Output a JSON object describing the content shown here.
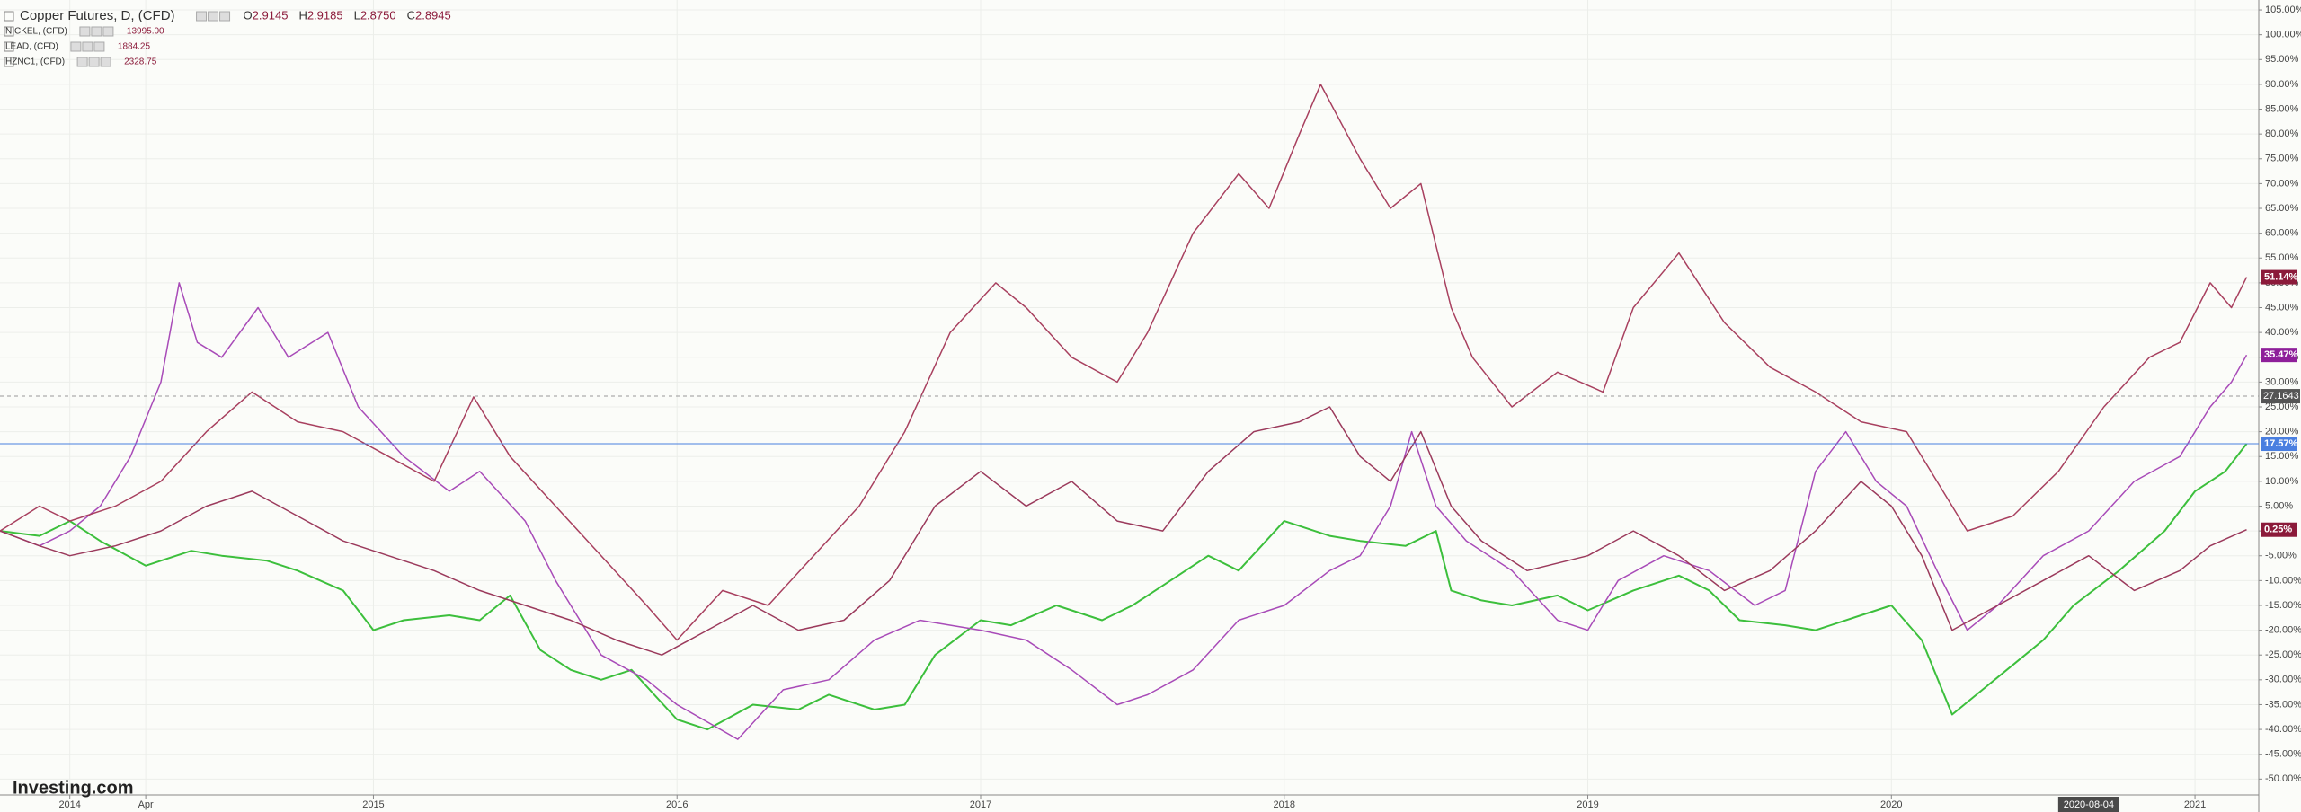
{
  "chart_data": {
    "type": "line",
    "watermark": "Investing.com",
    "xlim": [
      2013.77,
      2021.21
    ],
    "ylim": [
      -53.2,
      107
    ],
    "grid": true,
    "xticks": [
      2014,
      {
        "value": 2014.25,
        "label": "Apr"
      },
      2015,
      2016,
      2017,
      2018,
      2019,
      2020,
      2021
    ],
    "yticks": [
      {
        "value": 105,
        "label": "105.00%"
      },
      {
        "value": 100,
        "label": "100.00%"
      },
      {
        "value": 95,
        "label": "95.00%"
      },
      {
        "value": 90,
        "label": "90.00%"
      },
      {
        "value": 85,
        "label": "85.00%"
      },
      {
        "value": 80,
        "label": "80.00%"
      },
      {
        "value": 75,
        "label": "75.00%"
      },
      {
        "value": 70,
        "label": "70.00%"
      },
      {
        "value": 65,
        "label": "65.00%"
      },
      {
        "value": 60,
        "label": "60.00%"
      },
      {
        "value": 55,
        "label": "55.00%"
      },
      {
        "value": 50,
        "label": "50.00%"
      },
      {
        "value": 45,
        "label": "45.00%"
      },
      {
        "value": 40,
        "label": "40.00%"
      },
      {
        "value": 35,
        "label": "35.00%"
      },
      {
        "value": 30,
        "label": "30.00%"
      },
      {
        "value": 25,
        "label": "25.00%"
      },
      {
        "value": 20,
        "label": "20.00%"
      },
      {
        "value": 15,
        "label": "15.00%"
      },
      {
        "value": 10,
        "label": "10.00%"
      },
      {
        "value": 5,
        "label": "5.00%"
      },
      {
        "value": 0,
        "label": "0.00%"
      },
      {
        "value": -5,
        "label": "-5.00%"
      },
      {
        "value": -10,
        "label": "-10.00%"
      },
      {
        "value": -15,
        "label": "-15.00%"
      },
      {
        "value": -20,
        "label": "-20.00%"
      },
      {
        "value": -25,
        "label": "-25.00%"
      },
      {
        "value": -30,
        "label": "-30.00%"
      },
      {
        "value": -35,
        "label": "-35.00%"
      },
      {
        "value": -40,
        "label": "-40.00%"
      },
      {
        "value": -45,
        "label": "-45.00%"
      },
      {
        "value": -50,
        "label": "-50.00%"
      }
    ],
    "crosshair": {
      "x": {
        "value": 2020.65,
        "label": "2020-08-04"
      },
      "y": 27.1643
    },
    "series": [
      {
        "name": "Copper Futures, D, (CFD)",
        "color": "#3cbf3c",
        "ohlc": [
          {
            "key": "O",
            "value": "2.9145"
          },
          {
            "key": "H",
            "value": "2.9185"
          },
          {
            "key": "L",
            "value": "2.8750"
          },
          {
            "key": "C",
            "value": "2.8945"
          }
        ],
        "price_line": true,
        "end_label": {
          "value": 17.57,
          "label": "17.57%",
          "color": "#4a7fe0"
        },
        "x": [
          2013.77,
          2013.9,
          2014.0,
          2014.1,
          2014.25,
          2014.4,
          2014.5,
          2014.65,
          2014.75,
          2014.9,
          2015.0,
          2015.1,
          2015.25,
          2015.35,
          2015.45,
          2015.55,
          2015.65,
          2015.75,
          2015.85,
          2016.0,
          2016.1,
          2016.25,
          2016.4,
          2016.5,
          2016.65,
          2016.75,
          2016.85,
          2017.0,
          2017.1,
          2017.25,
          2017.4,
          2017.5,
          2017.6,
          2017.75,
          2017.85,
          2018.0,
          2018.15,
          2018.25,
          2018.4,
          2018.5,
          2018.55,
          2018.65,
          2018.75,
          2018.9,
          2019.0,
          2019.15,
          2019.3,
          2019.4,
          2019.5,
          2019.65,
          2019.75,
          2019.9,
          2020.0,
          2020.1,
          2020.2,
          2020.3,
          2020.4,
          2020.5,
          2020.6,
          2020.75,
          2020.9,
          2021.0,
          2021.1,
          2021.17
        ],
        "values": [
          0,
          -1,
          2,
          -2,
          -7,
          -4,
          -5,
          -6,
          -8,
          -12,
          -20,
          -18,
          -17,
          -18,
          -13,
          -24,
          -28,
          -30,
          -28,
          -38,
          -40,
          -35,
          -36,
          -33,
          -36,
          -35,
          -25,
          -18,
          -19,
          -15,
          -18,
          -15,
          -11,
          -5,
          -8,
          2,
          -1,
          -2,
          -3,
          0,
          -12,
          -14,
          -15,
          -13,
          -16,
          -12,
          -9,
          -12,
          -18,
          -19,
          -20,
          -17,
          -15,
          -22,
          -37,
          -32,
          -27,
          -22,
          -15,
          -8,
          0,
          8,
          12,
          17.57
        ]
      },
      {
        "name": "NICKEL, (CFD)",
        "color": "#a84bb8",
        "last_price": "13995.00",
        "end_label": {
          "value": 35.47,
          "label": "35.47%",
          "color": "#8e1f9a"
        },
        "x": [
          2013.77,
          2013.9,
          2014.0,
          2014.1,
          2014.2,
          2014.3,
          2014.36,
          2014.42,
          2014.5,
          2014.62,
          2014.72,
          2014.85,
          2014.95,
          2015.1,
          2015.25,
          2015.35,
          2015.5,
          2015.6,
          2015.75,
          2015.9,
          2016.0,
          2016.2,
          2016.35,
          2016.5,
          2016.65,
          2016.8,
          2017.0,
          2017.15,
          2017.3,
          2017.45,
          2017.55,
          2017.7,
          2017.85,
          2018.0,
          2018.15,
          2018.25,
          2018.35,
          2018.42,
          2018.5,
          2018.6,
          2018.75,
          2018.9,
          2019.0,
          2019.1,
          2019.25,
          2019.4,
          2019.55,
          2019.65,
          2019.75,
          2019.85,
          2019.95,
          2020.05,
          2020.15,
          2020.25,
          2020.35,
          2020.5,
          2020.65,
          2020.8,
          2020.95,
          2021.05,
          2021.12,
          2021.17
        ],
        "values": [
          0,
          -3,
          0,
          5,
          15,
          30,
          50,
          38,
          35,
          45,
          35,
          40,
          25,
          15,
          8,
          12,
          2,
          -10,
          -25,
          -30,
          -35,
          -42,
          -32,
          -30,
          -22,
          -18,
          -20,
          -22,
          -28,
          -35,
          -33,
          -28,
          -18,
          -15,
          -8,
          -5,
          5,
          20,
          5,
          -2,
          -8,
          -18,
          -20,
          -10,
          -5,
          -8,
          -15,
          -12,
          12,
          20,
          10,
          5,
          -8,
          -20,
          -15,
          -5,
          0,
          10,
          15,
          25,
          30,
          35.47
        ]
      },
      {
        "name": "LEAD, (CFD)",
        "color": "#9b3a5c",
        "last_price": "1884.25",
        "end_label": {
          "value": 0.25,
          "label": "0.25%",
          "color": "#8b1a3a"
        },
        "x": [
          2013.77,
          2013.9,
          2014.0,
          2014.15,
          2014.3,
          2014.45,
          2014.6,
          2014.75,
          2014.9,
          2015.05,
          2015.2,
          2015.35,
          2015.5,
          2015.65,
          2015.8,
          2015.95,
          2016.1,
          2016.25,
          2016.4,
          2016.55,
          2016.7,
          2016.85,
          2017.0,
          2017.15,
          2017.3,
          2017.45,
          2017.6,
          2017.75,
          2017.9,
          2018.05,
          2018.15,
          2018.25,
          2018.35,
          2018.45,
          2018.55,
          2018.65,
          2018.8,
          2019.0,
          2019.15,
          2019.3,
          2019.45,
          2019.6,
          2019.75,
          2019.9,
          2020.0,
          2020.1,
          2020.2,
          2020.35,
          2020.5,
          2020.65,
          2020.8,
          2020.95,
          2021.05,
          2021.17
        ],
        "values": [
          0,
          -3,
          -5,
          -3,
          0,
          5,
          8,
          3,
          -2,
          -5,
          -8,
          -12,
          -15,
          -18,
          -22,
          -25,
          -20,
          -15,
          -20,
          -18,
          -10,
          5,
          12,
          5,
          10,
          2,
          0,
          12,
          20,
          22,
          25,
          15,
          10,
          20,
          5,
          -2,
          -8,
          -5,
          0,
          -5,
          -12,
          -8,
          0,
          10,
          5,
          -5,
          -20,
          -15,
          -10,
          -5,
          -12,
          -8,
          -3,
          0.25
        ]
      },
      {
        "name": "HZNC1, (CFD)",
        "color": "#a8405f",
        "last_price": "2328.75",
        "end_label": {
          "value": 51.14,
          "label": "51.14%",
          "color": "#8b1a3a"
        },
        "x": [
          2013.77,
          2013.9,
          2014.0,
          2014.15,
          2014.3,
          2014.45,
          2014.6,
          2014.75,
          2014.9,
          2015.05,
          2015.2,
          2015.33,
          2015.45,
          2015.6,
          2015.75,
          2015.9,
          2016.0,
          2016.15,
          2016.3,
          2016.45,
          2016.6,
          2016.75,
          2016.9,
          2017.05,
          2017.15,
          2017.3,
          2017.45,
          2017.55,
          2017.7,
          2017.85,
          2017.95,
          2018.05,
          2018.12,
          2018.25,
          2018.35,
          2018.45,
          2018.55,
          2018.62,
          2018.75,
          2018.9,
          2019.05,
          2019.15,
          2019.3,
          2019.45,
          2019.6,
          2019.75,
          2019.9,
          2020.05,
          2020.15,
          2020.25,
          2020.4,
          2020.55,
          2020.7,
          2020.85,
          2020.95,
          2021.05,
          2021.12,
          2021.17
        ],
        "values": [
          0,
          5,
          2,
          5,
          10,
          20,
          28,
          22,
          20,
          15,
          10,
          27,
          15,
          5,
          -5,
          -15,
          -22,
          -12,
          -15,
          -5,
          5,
          20,
          40,
          50,
          45,
          35,
          30,
          40,
          60,
          72,
          65,
          80,
          90,
          75,
          65,
          70,
          45,
          35,
          25,
          32,
          28,
          45,
          56,
          42,
          33,
          28,
          22,
          20,
          10,
          0,
          3,
          12,
          25,
          35,
          38,
          50,
          45,
          51.14
        ]
      }
    ]
  }
}
